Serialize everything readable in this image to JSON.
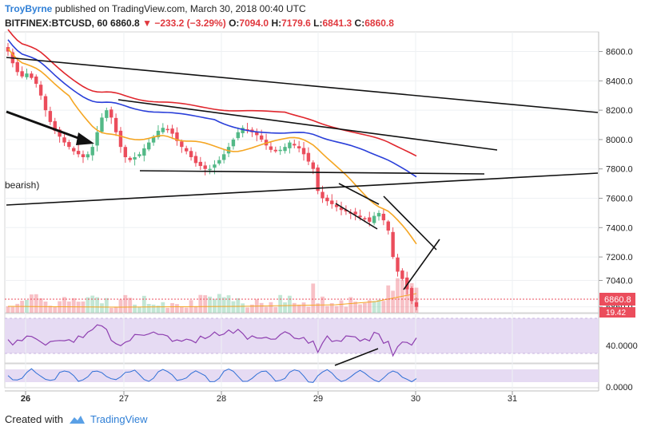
{
  "header": {
    "author": "TroyByrne",
    "published_text": "published on TradingView.com, March 30, 2018 00:40 UTC",
    "symbol": "BITFINEX:BTCUSD, 60",
    "last": "6860.8",
    "change": "−233.2 (−3.29%)",
    "o_label": "O:",
    "o_value": "7094.0",
    "h_label": "H:",
    "h_value": "7179.6",
    "l_label": "L:",
    "l_value": "6841.3",
    "c_label": "C:",
    "c_value": "6860.8"
  },
  "footer": {
    "created_with": "Created with",
    "brand": "TradingView"
  },
  "colors": {
    "up": "#53b987",
    "down": "#eb4d5c",
    "ma_red": "#e0262d",
    "ma_blue": "#2a3fd9",
    "ma_orange": "#f5a623",
    "rsi": "#8e3fb0",
    "stoch": "#2f6fd6",
    "band": "#e6dbf3"
  },
  "chart_data": {
    "type": "candlestick",
    "title": "",
    "y_axis_labels": [
      "8600.0",
      "8400.0",
      "8200.0",
      "8000.0",
      "7800.0",
      "7600.0",
      "7400.0",
      "7200.0",
      "7040.0",
      "6860.0"
    ],
    "y_range": [
      6820,
      8690
    ],
    "x_axis_labels": [
      "26",
      "27",
      "28",
      "29",
      "30",
      "31"
    ],
    "annotation": "bearish)",
    "current_price_label": "6860.8",
    "volume_label": "19.42",
    "rsi_label": "40.0000",
    "stoch_label": "0.0000",
    "closes": [
      8600,
      8520,
      8460,
      8430,
      8450,
      8420,
      8380,
      8300,
      8200,
      8120,
      8060,
      8020,
      7980,
      7950,
      7920,
      7900,
      7880,
      7900,
      7950,
      8050,
      8150,
      8200,
      8150,
      8050,
      7950,
      7880,
      7860,
      7880,
      7900,
      7940,
      7980,
      8020,
      8060,
      8080,
      8070,
      8040,
      7990,
      7950,
      7920,
      7880,
      7840,
      7820,
      7800,
      7800,
      7830,
      7860,
      7900,
      7950,
      8000,
      8050,
      8080,
      8070,
      8050,
      8030,
      8000,
      7960,
      7930,
      7920,
      7930,
      7950,
      7980,
      7960,
      7940,
      7900,
      7850,
      7800,
      7650,
      7600,
      7580,
      7560,
      7540,
      7520,
      7510,
      7500,
      7490,
      7470,
      7460,
      7440,
      7480,
      7500,
      7450,
      7380,
      7200,
      7100,
      7050,
      6980,
      6900,
      6860
    ]
  }
}
